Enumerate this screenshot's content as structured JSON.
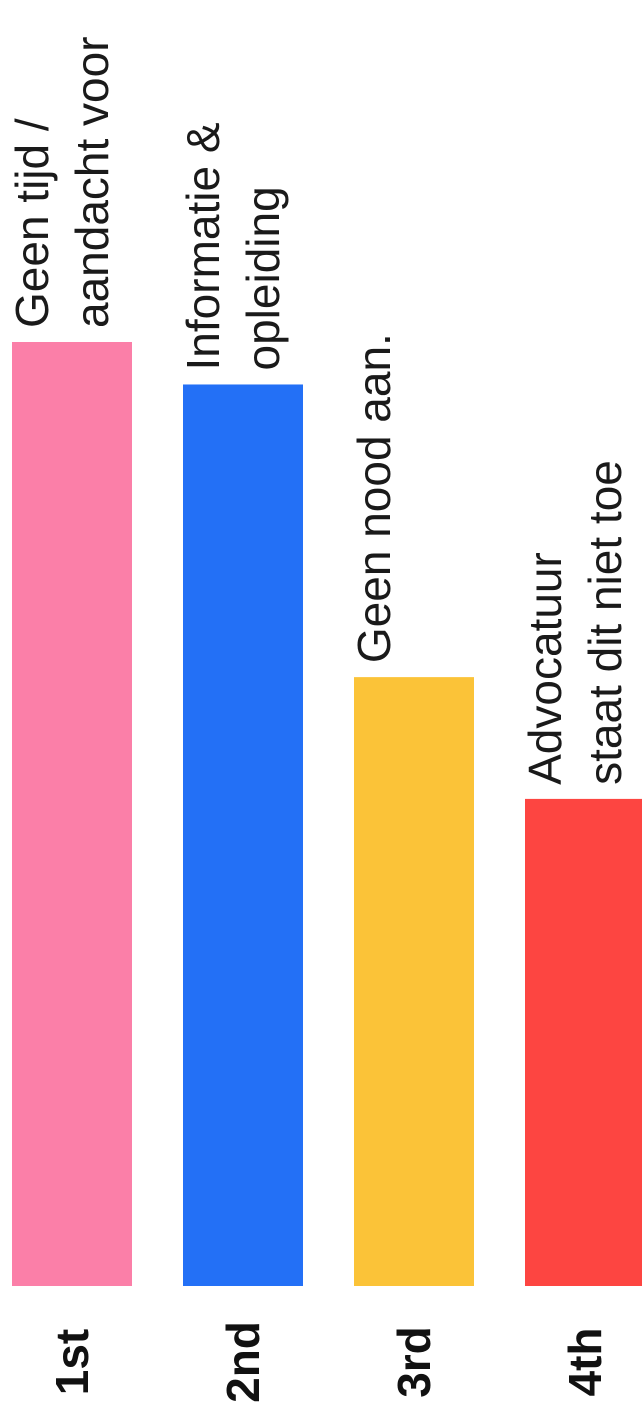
{
  "chart_data": {
    "type": "bar",
    "orientation": "vertical-rotated",
    "title": "",
    "xlabel": "",
    "ylabel": "",
    "categories": [
      "1st",
      "2nd",
      "3rd",
      "4th"
    ],
    "bar_labels": [
      [
        "Geen tijd /",
        "aandacht voor"
      ],
      [
        "Informatie &",
        "opleiding"
      ],
      [
        "Geen nood aan."
      ],
      [
        "Advocatuur",
        "staat dit niet toe"
      ]
    ],
    "values": [
      100,
      95.5,
      64.5,
      51.6
    ],
    "ylim": [
      0,
      100
    ],
    "colors": [
      "#fb7fa8",
      "#2370f6",
      "#fbc338",
      "#fd4541"
    ],
    "grid": false,
    "legend": "none"
  }
}
